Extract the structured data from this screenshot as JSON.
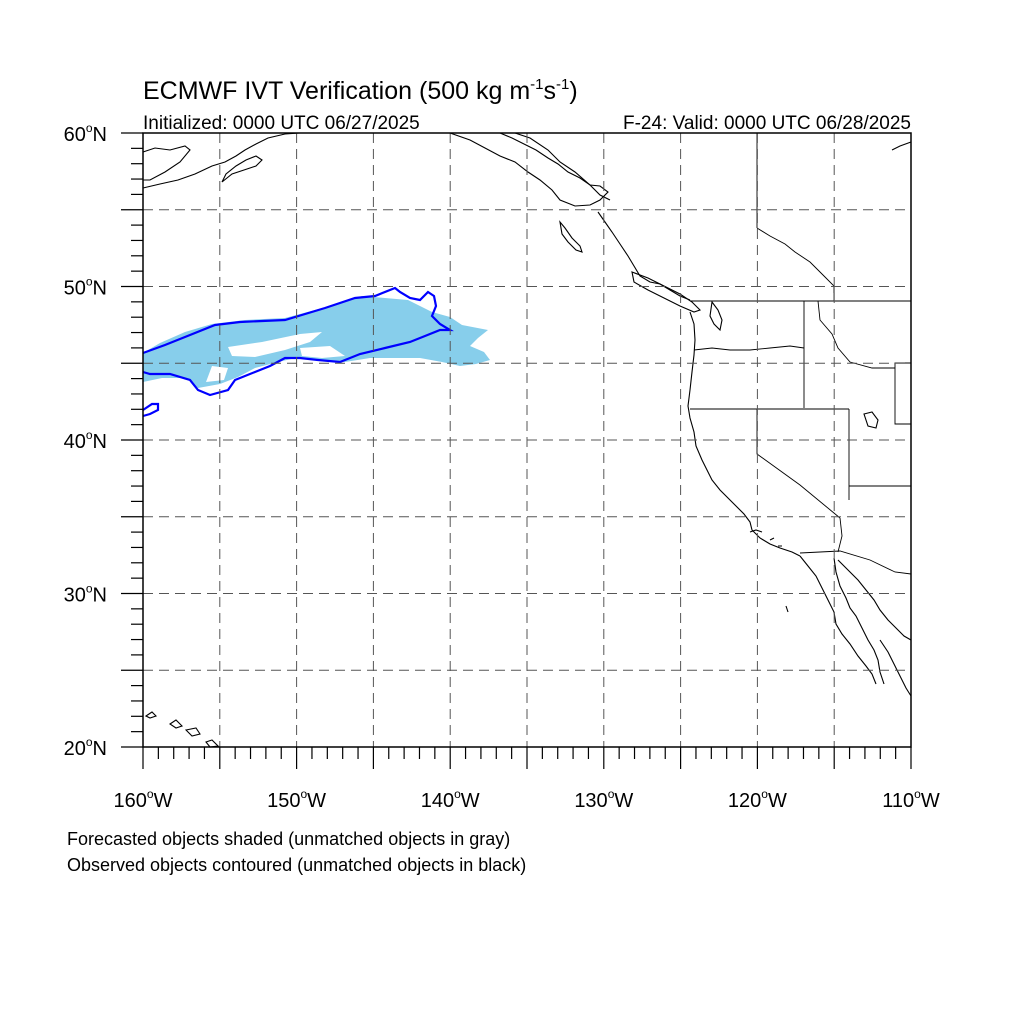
{
  "title": {
    "main": "ECMWF IVT Verification (500 kg m",
    "sup1": "-1",
    "mid": "s",
    "sup2": "-1",
    "end": ")"
  },
  "subtitle_left": "Initialized: 0000 UTC 06/27/2025",
  "subtitle_right": "F-24: Valid: 0000 UTC 06/28/2025",
  "map": {
    "lon_range": [
      -160,
      -110
    ],
    "lat_range": [
      20,
      60
    ],
    "grid": "dashed every 5 degrees",
    "lat_labels": [
      "60",
      "50",
      "40",
      "30",
      "20"
    ],
    "lon_labels": [
      "160",
      "150",
      "140",
      "130",
      "120",
      "110"
    ],
    "lat_hemisphere": "N",
    "lon_hemisphere": "W",
    "degree_symbol": "o",
    "colors": {
      "forecast_fill": "#87ceeb",
      "observed_contour": "#0000ff",
      "coastline": "#000000",
      "grid": "#555555"
    }
  },
  "footnotes": [
    "Forecasted objects shaded (unmatched objects in gray)",
    "Observed objects contoured (unmatched objects in black)"
  ]
}
